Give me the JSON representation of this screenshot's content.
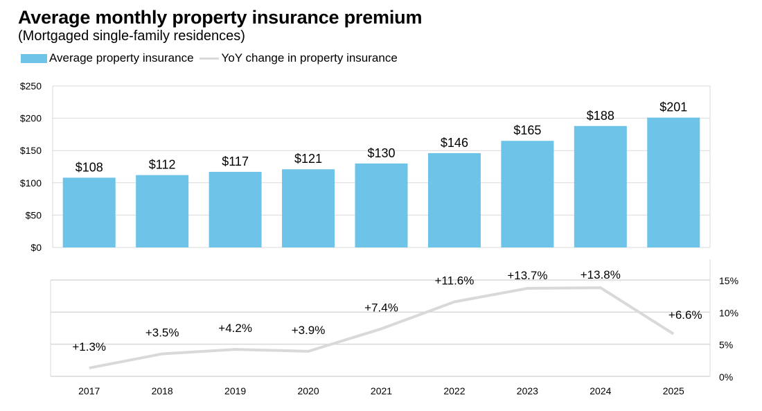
{
  "chart_data": [
    {
      "type": "bar",
      "title": "Average monthly property insurance premium",
      "subtitle": "(Mortgaged single-family residences)",
      "legend": [
        "Average property insurance",
        "YoY change in property insurance"
      ],
      "legend_placement": "top-left",
      "categories": [
        "2017",
        "2018",
        "2019",
        "2020",
        "2021",
        "2022",
        "2023",
        "2024",
        "2025"
      ],
      "values": [
        108,
        112,
        117,
        121,
        130,
        146,
        165,
        188,
        201
      ],
      "data_labels": [
        "$108",
        "$112",
        "$117",
        "$121",
        "$130",
        "$146",
        "$165",
        "$188",
        "$201"
      ],
      "ylim": [
        0,
        250
      ],
      "yticks": [
        0,
        50,
        100,
        150,
        200,
        250
      ],
      "ytick_labels": [
        "$0",
        "$50",
        "$100",
        "$150",
        "$200",
        "$250"
      ],
      "grid": true,
      "color": "#6ec4e8"
    },
    {
      "type": "line",
      "categories": [
        "2017",
        "2018",
        "2019",
        "2020",
        "2021",
        "2022",
        "2023",
        "2024",
        "2025"
      ],
      "values": [
        1.3,
        3.5,
        4.2,
        3.9,
        7.4,
        11.6,
        13.7,
        13.8,
        6.6
      ],
      "data_labels": [
        "+1.3%",
        "+3.5%",
        "+4.2%",
        "+3.9%",
        "+7.4%",
        "+11.6%",
        "+13.7%",
        "+13.8%",
        "+6.6%"
      ],
      "ylim": [
        0,
        15
      ],
      "yticks": [
        0,
        5,
        10,
        15
      ],
      "ytick_labels": [
        "0%",
        "5%",
        "10%",
        "15%"
      ],
      "y_axis_side": "right",
      "grid": true,
      "color": "#d9d9d9"
    }
  ]
}
